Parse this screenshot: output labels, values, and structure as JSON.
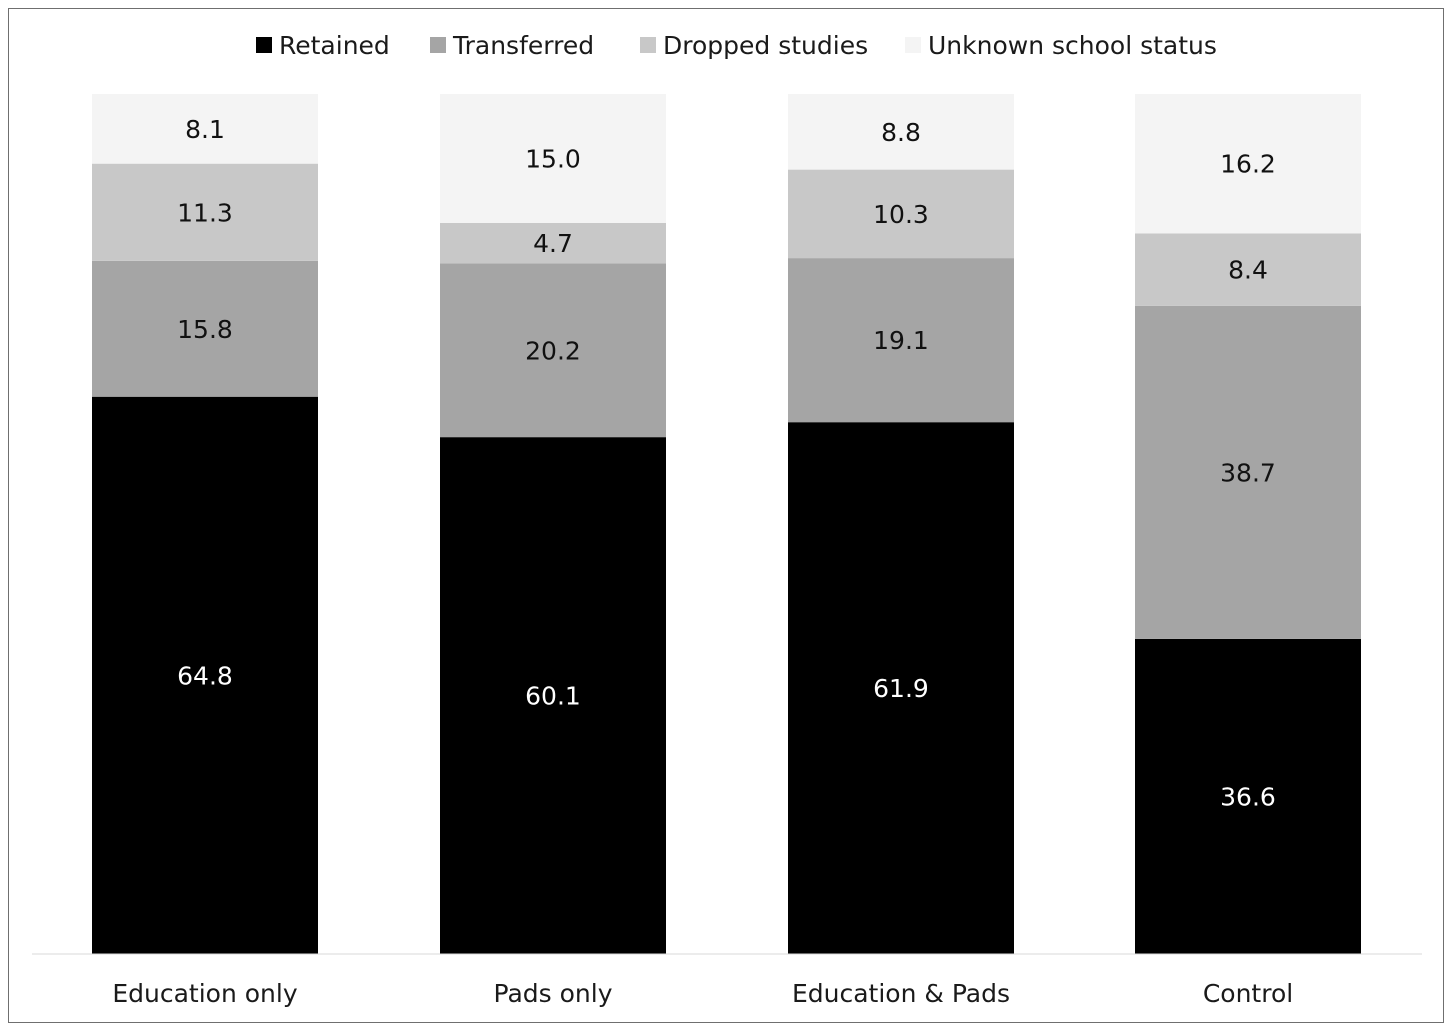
{
  "chart_data": {
    "type": "bar",
    "stacked": true,
    "percent_stacked": true,
    "categories": [
      "Education only",
      "Pads only",
      "Education & Pads",
      "Control"
    ],
    "series": [
      {
        "name": "Retained",
        "color": "#000000",
        "label_color": "#ffffff",
        "values": [
          64.8,
          60.1,
          61.9,
          36.6
        ],
        "labels": [
          "64.8",
          "60.1",
          "61.9",
          "36.6"
        ]
      },
      {
        "name": "Transferred",
        "color": "#a5a5a5",
        "label_color": "#111111",
        "values": [
          15.8,
          20.2,
          19.1,
          38.7
        ],
        "labels": [
          "15.8",
          "20.2",
          "19.1",
          "38.7"
        ]
      },
      {
        "name": "Dropped studies",
        "color": "#c8c8c8",
        "label_color": "#111111",
        "values": [
          11.3,
          4.7,
          10.3,
          8.4
        ],
        "labels": [
          "11.3",
          "4.7",
          "10.3",
          "8.4"
        ]
      },
      {
        "name": "Unknown school status",
        "color": "#f4f4f4",
        "label_color": "#111111",
        "values": [
          8.1,
          15.0,
          8.8,
          16.2
        ],
        "labels": [
          "8.1",
          "15.0",
          "8.8",
          "16.2"
        ]
      }
    ],
    "legend_position": "top-center",
    "grid": false,
    "title": "",
    "xlabel": "",
    "ylabel": ""
  }
}
